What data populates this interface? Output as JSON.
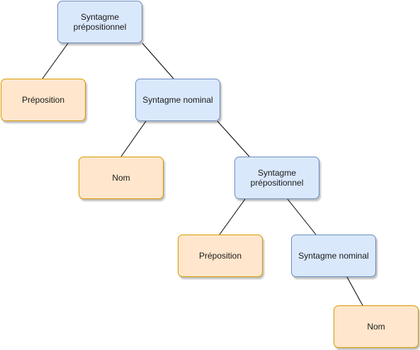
{
  "tree": {
    "nodes": [
      {
        "id": "n1",
        "label": "Syntagme\nprépositionnel",
        "kind": "phrase"
      },
      {
        "id": "n2",
        "label": "Préposition",
        "kind": "word"
      },
      {
        "id": "n3",
        "label": "Syntagme nominal",
        "kind": "phrase"
      },
      {
        "id": "n4",
        "label": "Nom",
        "kind": "word"
      },
      {
        "id": "n5",
        "label": "Syntagme\nprépositionnel",
        "kind": "phrase"
      },
      {
        "id": "n6",
        "label": "Préposition",
        "kind": "word"
      },
      {
        "id": "n7",
        "label": "Syntagme nominal",
        "kind": "phrase"
      },
      {
        "id": "n8",
        "label": "Nom",
        "kind": "word"
      }
    ],
    "edges": [
      [
        "n1",
        "n2"
      ],
      [
        "n1",
        "n3"
      ],
      [
        "n3",
        "n4"
      ],
      [
        "n3",
        "n5"
      ],
      [
        "n5",
        "n6"
      ],
      [
        "n5",
        "n7"
      ],
      [
        "n7",
        "n8"
      ]
    ]
  },
  "colors": {
    "phrase_fill": "#dae8fc",
    "phrase_stroke": "#6c8ebf",
    "word_fill": "#ffe6cc",
    "word_stroke": "#d79b00",
    "edge": "#000000"
  }
}
